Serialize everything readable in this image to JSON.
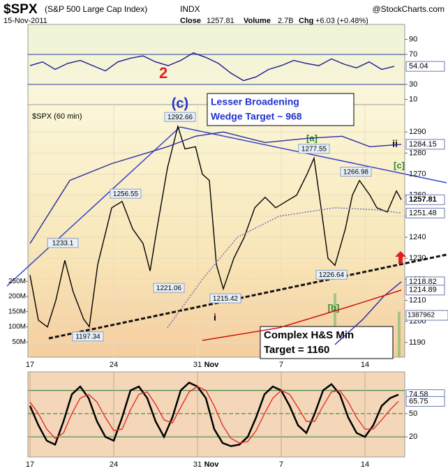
{
  "header": {
    "symbol": "$SPX",
    "name": "(S&P 500 Large Cap Index)",
    "exchange": "INDX",
    "date": "15-Nov-2011",
    "close_label": "Close",
    "close": "1257.81",
    "volume_label": "Volume",
    "volume": "2.7B",
    "chg_label": "Chg",
    "chg": "+6.03 (+0.48%)",
    "source": "@StockCharts.com"
  },
  "chart_data": [
    {
      "type": "line",
      "panel": "rsi",
      "x": [
        0,
        0.75,
        1.5,
        2.25,
        3,
        3.75,
        4.5,
        5.25,
        6,
        6.75,
        7.5,
        8.25,
        9,
        9.75,
        10.5,
        11.25,
        12,
        12.75,
        13.5,
        14.25,
        15,
        15.75,
        16.5,
        17.25,
        18,
        18.75,
        19.5,
        20.25,
        21,
        21.75
      ],
      "series": [
        {
          "color": "#1a1a8c",
          "values": [
            55,
            60,
            50,
            58,
            62,
            55,
            48,
            60,
            65,
            68,
            60,
            55,
            62,
            72,
            66,
            58,
            45,
            35,
            40,
            50,
            55,
            62,
            58,
            55,
            64,
            57,
            52,
            60,
            50,
            54.04
          ]
        }
      ],
      "xlim": [
        -0.125,
        22.375
      ],
      "ylim": [
        3,
        110
      ],
      "yticks": [
        10,
        30,
        70,
        90
      ],
      "levels": [
        30,
        70
      ],
      "tags": [
        54.04
      ]
    },
    {
      "type": "line",
      "panel": "price",
      "title": "$SPX (60 min)",
      "x": [
        0,
        0.5,
        1.04,
        1.54,
        2.08,
        2.58,
        3.21,
        3.54,
        4.04,
        4.88,
        5.5,
        6.13,
        6.75,
        7.17,
        7.58,
        8.21,
        8.83,
        9.25,
        9.88,
        10.29,
        10.71,
        11.13,
        11.54,
        12.17,
        12.79,
        13.42,
        14.04,
        14.67,
        15.29,
        15.92,
        16.54,
        16.96,
        17.38,
        17.79,
        18.21,
        18.83,
        19.25,
        19.67,
        20.29,
        20.71,
        21.33,
        21.88,
        22.17
      ],
      "series": [
        {
          "color": "#000000",
          "values": [
            1222,
            1200.6,
            1197.34,
            1210,
            1229,
            1214,
            1201,
            1197.5,
            1227,
            1254,
            1257,
            1244,
            1237,
            1224,
            1244,
            1273,
            1292.66,
            1282,
            1283,
            1270,
            1267,
            1227,
            1215.42,
            1230,
            1240,
            1254,
            1259,
            1254,
            1257,
            1260,
            1270,
            1277.55,
            1254,
            1230,
            1226.64,
            1244,
            1260,
            1266.98,
            1260,
            1254,
            1252,
            1262,
            1257.81
          ]
        },
        {
          "color": "#2a2aa0",
          "x": [
            0,
            2.38,
            4.88,
            8.21,
            9.88,
            11.54,
            14.04,
            16.54,
            18.63,
            20.29,
            22.17
          ],
          "values": [
            1237,
            1267,
            1275,
            1283,
            1288,
            1290,
            1285,
            1287,
            1288,
            1283,
            1284.15
          ]
        },
        {
          "color": "#2a2aa0",
          "x": [
            18.21,
            19.88,
            21.13,
            22.17
          ],
          "values": [
            1189,
            1201,
            1212,
            1218.82
          ]
        },
        {
          "color": "#6a6ab0",
          "dashed": true,
          "x": [
            8.21,
            10.29,
            12.38,
            14.88,
            18.21,
            20.71,
            22.17
          ],
          "values": [
            1197,
            1220,
            1240,
            1250,
            1254,
            1253,
            1251.48
          ]
        },
        {
          "color": "#d00000",
          "x": [
            10.29,
            14.88,
            19.04,
            22.17
          ],
          "values": [
            1191,
            1197,
            1207,
            1214.89
          ]
        }
      ],
      "xlim": [
        -0.125,
        22.375
      ],
      "ylim": [
        1183,
        1303
      ],
      "yticks": [
        1190,
        1200,
        1210,
        1220,
        1230,
        1240,
        1250,
        1260,
        1270,
        1280,
        1290
      ],
      "xticks": [
        {
          "value": 0,
          "label": "17"
        },
        {
          "value": 5,
          "label": "24"
        },
        {
          "value": 10,
          "label": "31"
        },
        {
          "value": 15,
          "label": "7"
        },
        {
          "value": 20,
          "label": "14"
        }
      ],
      "month_label": "Nov",
      "tags": [
        1284.15,
        1257.81,
        1251.48,
        1218.82,
        1214.89
      ],
      "point_labels": [
        1292.66,
        1256.55,
        1233.1,
        1221.06,
        1215.42,
        1197.34,
        1277.55,
        1266.98,
        1226.64
      ],
      "volume": {
        "color": "#8fbf7f",
        "x": [
          15.92,
          16.75,
          17.79,
          18.21,
          19.04,
          19.88,
          20.71,
          21.54,
          22.04
        ],
        "values": [
          60000000,
          60000000,
          100000000,
          210000000,
          60000000,
          40000000,
          30000000,
          60000000,
          150000000
        ],
        "ylim": [
          0,
          832000000
        ],
        "yticks": [
          {
            "value": 50000000,
            "label": "50M"
          },
          {
            "value": 100000000,
            "label": "100M"
          },
          {
            "value": 150000000,
            "label": "150M"
          },
          {
            "value": 200000000,
            "label": "200M"
          },
          {
            "value": 250000000,
            "label": "250M"
          }
        ],
        "tag": "1387962"
      },
      "annotations": {
        "wave_c": "(c)",
        "wave_2": "2",
        "wedge": [
          "Lesser Broadening",
          "Wedge Target ~ 968"
        ],
        "a": "[a]",
        "b": "[b]",
        "c": "[c]",
        "ii": "ii",
        "i": "i",
        "hs": [
          "Complex H&S Min",
          "Target = 1160"
        ]
      }
    },
    {
      "type": "line",
      "panel": "stoch",
      "x": [
        0,
        0.5,
        1,
        1.5,
        2,
        2.5,
        3,
        3.5,
        4,
        4.5,
        5,
        5.5,
        6,
        6.5,
        7,
        7.5,
        8,
        8.5,
        9,
        9.5,
        10,
        10.5,
        11,
        11.5,
        12,
        12.5,
        13,
        13.5,
        14,
        14.5,
        15,
        15.5,
        16,
        16.5,
        17,
        17.5,
        18,
        18.5,
        19,
        19.5,
        20,
        20.5,
        21,
        21.5,
        22
      ],
      "series": [
        {
          "color": "#000000",
          "values": [
            60,
            35,
            15,
            10,
            40,
            75,
            85,
            70,
            40,
            20,
            15,
            45,
            80,
            85,
            70,
            40,
            20,
            45,
            80,
            90,
            85,
            70,
            30,
            12,
            8,
            10,
            20,
            45,
            75,
            85,
            80,
            60,
            35,
            25,
            50,
            80,
            88,
            75,
            45,
            25,
            20,
            35,
            60,
            70,
            74.58
          ]
        },
        {
          "color": "#e03030",
          "values": [
            65,
            50,
            30,
            18,
            25,
            50,
            70,
            75,
            65,
            45,
            28,
            30,
            55,
            75,
            78,
            62,
            42,
            38,
            58,
            78,
            85,
            80,
            60,
            35,
            18,
            12,
            14,
            28,
            50,
            70,
            80,
            75,
            58,
            40,
            40,
            60,
            78,
            80,
            65,
            45,
            30,
            30,
            42,
            55,
            65.75
          ]
        }
      ],
      "xlim": [
        -0.125,
        22.375
      ],
      "ylim": [
        -6,
        104
      ],
      "yticks": [
        20,
        50
      ],
      "levels": [
        20,
        50,
        80
      ],
      "tags": [
        74.58,
        65.75
      ],
      "xticks": [
        {
          "value": 0,
          "label": "17"
        },
        {
          "value": 5,
          "label": "24"
        },
        {
          "value": 10,
          "label": "31"
        },
        {
          "value": 15,
          "label": "7"
        },
        {
          "value": 20,
          "label": "14"
        }
      ],
      "month_label": "Nov"
    }
  ]
}
